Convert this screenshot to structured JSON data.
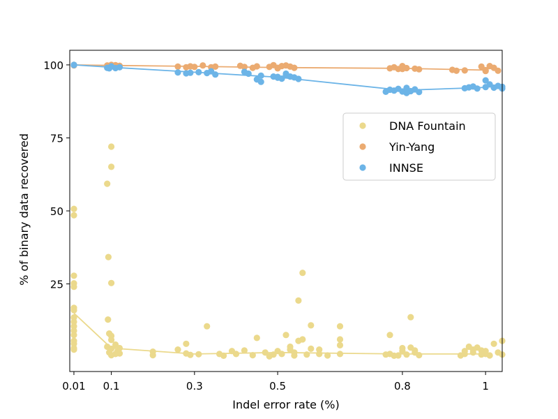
{
  "chart_data": {
    "type": "scatter",
    "xlabel": "Indel error rate (%)",
    "ylabel": "% of binary data recovered",
    "xlim": [
      0.0,
      1.04
    ],
    "ylim": [
      -5,
      105
    ],
    "x_ticks": [
      {
        "value": 0.01,
        "label": "0.01"
      },
      {
        "value": 0.1,
        "label": "0.1"
      },
      {
        "value": 0.3,
        "label": "0.3"
      },
      {
        "value": 0.5,
        "label": "0.5"
      },
      {
        "value": 0.8,
        "label": "0.8"
      },
      {
        "value": 1.0,
        "label": "1"
      }
    ],
    "y_ticks": [
      {
        "value": 25,
        "label": "25"
      },
      {
        "value": 50,
        "label": "50"
      },
      {
        "value": 75,
        "label": "75"
      },
      {
        "value": 100,
        "label": "100"
      }
    ],
    "grid": false,
    "legend_position": "right",
    "series": [
      {
        "name": "DNA Fountain",
        "color": "#ebd98c",
        "line": {
          "x": [
            0.01,
            0.1,
            0.3,
            0.5,
            0.8,
            1.0
          ],
          "y": [
            15,
            3,
            1,
            1.5,
            1,
            1
          ]
        },
        "points": [
          [
            0.01,
            50.7
          ],
          [
            0.01,
            48.5
          ],
          [
            0.01,
            27.8
          ],
          [
            0.01,
            25.2
          ],
          [
            0.01,
            24.0
          ],
          [
            0.01,
            16.8
          ],
          [
            0.01,
            16.0
          ],
          [
            0.01,
            13.5
          ],
          [
            0.01,
            12.0
          ],
          [
            0.01,
            10.5
          ],
          [
            0.01,
            9.0
          ],
          [
            0.01,
            7.5
          ],
          [
            0.01,
            5.5
          ],
          [
            0.01,
            4.5
          ],
          [
            0.01,
            3.0
          ],
          [
            0.01,
            2.5
          ],
          [
            0.09,
            59.3
          ],
          [
            0.093,
            34.2
          ],
          [
            0.1,
            72.0
          ],
          [
            0.1,
            65.1
          ],
          [
            0.1,
            25.3
          ],
          [
            0.092,
            12.8
          ],
          [
            0.095,
            8.0
          ],
          [
            0.1,
            7.2
          ],
          [
            0.1,
            5.8
          ],
          [
            0.11,
            4.2
          ],
          [
            0.09,
            3.5
          ],
          [
            0.1,
            2.8
          ],
          [
            0.115,
            2.0
          ],
          [
            0.095,
            1.5
          ],
          [
            0.11,
            1.0
          ],
          [
            0.1,
            0.6
          ],
          [
            0.12,
            3.0
          ],
          [
            0.12,
            1.2
          ],
          [
            0.2,
            1.8
          ],
          [
            0.2,
            0.6
          ],
          [
            0.26,
            2.5
          ],
          [
            0.28,
            4.5
          ],
          [
            0.28,
            1.2
          ],
          [
            0.29,
            0.7
          ],
          [
            0.31,
            0.9
          ],
          [
            0.33,
            10.5
          ],
          [
            0.36,
            1.0
          ],
          [
            0.37,
            0.4
          ],
          [
            0.39,
            2.0
          ],
          [
            0.4,
            1.0
          ],
          [
            0.42,
            2.2
          ],
          [
            0.44,
            0.6
          ],
          [
            0.45,
            6.5
          ],
          [
            0.47,
            1.5
          ],
          [
            0.48,
            0.2
          ],
          [
            0.49,
            0.8
          ],
          [
            0.5,
            2.0
          ],
          [
            0.51,
            1.0
          ],
          [
            0.52,
            7.5
          ],
          [
            0.53,
            3.5
          ],
          [
            0.53,
            2.5
          ],
          [
            0.54,
            1.5
          ],
          [
            0.54,
            0.5
          ],
          [
            0.55,
            5.5
          ],
          [
            0.55,
            19.3
          ],
          [
            0.56,
            28.8
          ],
          [
            0.56,
            6.0
          ],
          [
            0.57,
            0.8
          ],
          [
            0.58,
            10.8
          ],
          [
            0.58,
            2.8
          ],
          [
            0.6,
            2.5
          ],
          [
            0.6,
            1.0
          ],
          [
            0.62,
            0.5
          ],
          [
            0.65,
            10.5
          ],
          [
            0.65,
            6.0
          ],
          [
            0.65,
            4.0
          ],
          [
            0.65,
            1.0
          ],
          [
            0.77,
            7.5
          ],
          [
            0.77,
            1.0
          ],
          [
            0.79,
            0.5
          ],
          [
            0.8,
            3.0
          ],
          [
            0.8,
            2.0
          ],
          [
            0.81,
            0.8
          ],
          [
            0.82,
            13.6
          ],
          [
            0.82,
            3.2
          ],
          [
            0.83,
            1.5
          ],
          [
            0.84,
            0.6
          ],
          [
            0.76,
            0.8
          ],
          [
            0.78,
            0.4
          ],
          [
            0.83,
            2.2
          ],
          [
            0.94,
            0.5
          ],
          [
            0.95,
            1.0
          ],
          [
            0.96,
            3.5
          ],
          [
            0.97,
            2.5
          ],
          [
            0.97,
            1.5
          ],
          [
            0.98,
            3.2
          ],
          [
            0.99,
            0.8
          ],
          [
            1.0,
            2.0
          ],
          [
            1.0,
            1.0
          ],
          [
            1.01,
            0.5
          ],
          [
            1.02,
            4.5
          ],
          [
            1.03,
            1.5
          ],
          [
            1.04,
            5.5
          ],
          [
            1.04,
            0.8
          ],
          [
            0.95,
            2.0
          ],
          [
            0.99,
            2.2
          ]
        ]
      },
      {
        "name": "Yin-Yang",
        "color": "#ebab71",
        "line": {
          "x": [
            0.01,
            0.1,
            0.3,
            0.5,
            0.8,
            1.0
          ],
          "y": [
            100,
            99.8,
            99.5,
            99.1,
            98.8,
            98.2
          ]
        },
        "points": [
          [
            0.01,
            100
          ],
          [
            0.01,
            99.8
          ],
          [
            0.09,
            99.8
          ],
          [
            0.1,
            99.6
          ],
          [
            0.1,
            100
          ],
          [
            0.11,
            99.9
          ],
          [
            0.12,
            99.7
          ],
          [
            0.095,
            99.3
          ],
          [
            0.26,
            99.4
          ],
          [
            0.28,
            99.2
          ],
          [
            0.29,
            99.5
          ],
          [
            0.3,
            99.3
          ],
          [
            0.32,
            99.8
          ],
          [
            0.34,
            99.2
          ],
          [
            0.35,
            99.4
          ],
          [
            0.41,
            99.7
          ],
          [
            0.42,
            99.3
          ],
          [
            0.44,
            99.0
          ],
          [
            0.45,
            99.5
          ],
          [
            0.48,
            99.3
          ],
          [
            0.49,
            99.9
          ],
          [
            0.5,
            99.0
          ],
          [
            0.51,
            99.6
          ],
          [
            0.52,
            99.8
          ],
          [
            0.53,
            99.4
          ],
          [
            0.54,
            99.0
          ],
          [
            0.5,
            98.8
          ],
          [
            0.77,
            98.8
          ],
          [
            0.78,
            99.2
          ],
          [
            0.79,
            98.6
          ],
          [
            0.8,
            99.6
          ],
          [
            0.81,
            98.9
          ],
          [
            0.83,
            98.7
          ],
          [
            0.84,
            98.5
          ],
          [
            0.8,
            98.6
          ],
          [
            0.92,
            98.3
          ],
          [
            0.93,
            98.0
          ],
          [
            0.95,
            98.1
          ],
          [
            0.99,
            99.4
          ],
          [
            1.0,
            98.2
          ],
          [
            1.01,
            99.6
          ],
          [
            1.02,
            99.0
          ],
          [
            1.03,
            98.0
          ],
          [
            1.0,
            97.9
          ]
        ]
      },
      {
        "name": "INNSE",
        "color": "#6cb4e7",
        "line": {
          "x": [
            0.01,
            0.1,
            0.3,
            0.5,
            0.8,
            1.0
          ],
          "y": [
            100,
            99.2,
            97.5,
            95.8,
            91.3,
            92.3
          ]
        },
        "points": [
          [
            0.01,
            99.9
          ],
          [
            0.01,
            100
          ],
          [
            0.09,
            99.0
          ],
          [
            0.1,
            99.5
          ],
          [
            0.11,
            98.9
          ],
          [
            0.12,
            99.2
          ],
          [
            0.095,
            98.8
          ],
          [
            0.26,
            97.4
          ],
          [
            0.28,
            97.1
          ],
          [
            0.29,
            97.3
          ],
          [
            0.31,
            97.5
          ],
          [
            0.33,
            97.2
          ],
          [
            0.34,
            97.8
          ],
          [
            0.35,
            96.7
          ],
          [
            0.42,
            97.6
          ],
          [
            0.43,
            97.0
          ],
          [
            0.45,
            95.0
          ],
          [
            0.46,
            94.2
          ],
          [
            0.46,
            96.3
          ],
          [
            0.49,
            96.0
          ],
          [
            0.5,
            95.6
          ],
          [
            0.51,
            95.3
          ],
          [
            0.52,
            97.0
          ],
          [
            0.53,
            96.0
          ],
          [
            0.54,
            95.7
          ],
          [
            0.55,
            95.2
          ],
          [
            0.52,
            96.5
          ],
          [
            0.5,
            95.9
          ],
          [
            0.76,
            90.8
          ],
          [
            0.77,
            91.5
          ],
          [
            0.78,
            91.2
          ],
          [
            0.79,
            91.8
          ],
          [
            0.8,
            90.9
          ],
          [
            0.81,
            92.1
          ],
          [
            0.82,
            91.0
          ],
          [
            0.83,
            91.6
          ],
          [
            0.84,
            90.7
          ],
          [
            0.81,
            90.4
          ],
          [
            0.95,
            92.0
          ],
          [
            0.97,
            92.6
          ],
          [
            0.98,
            91.9
          ],
          [
            1.0,
            94.7
          ],
          [
            1.0,
            92.4
          ],
          [
            1.01,
            93.3
          ],
          [
            1.02,
            92.2
          ],
          [
            1.03,
            92.8
          ],
          [
            1.04,
            92.5
          ],
          [
            1.04,
            91.9
          ],
          [
            0.96,
            92.3
          ]
        ]
      }
    ]
  }
}
